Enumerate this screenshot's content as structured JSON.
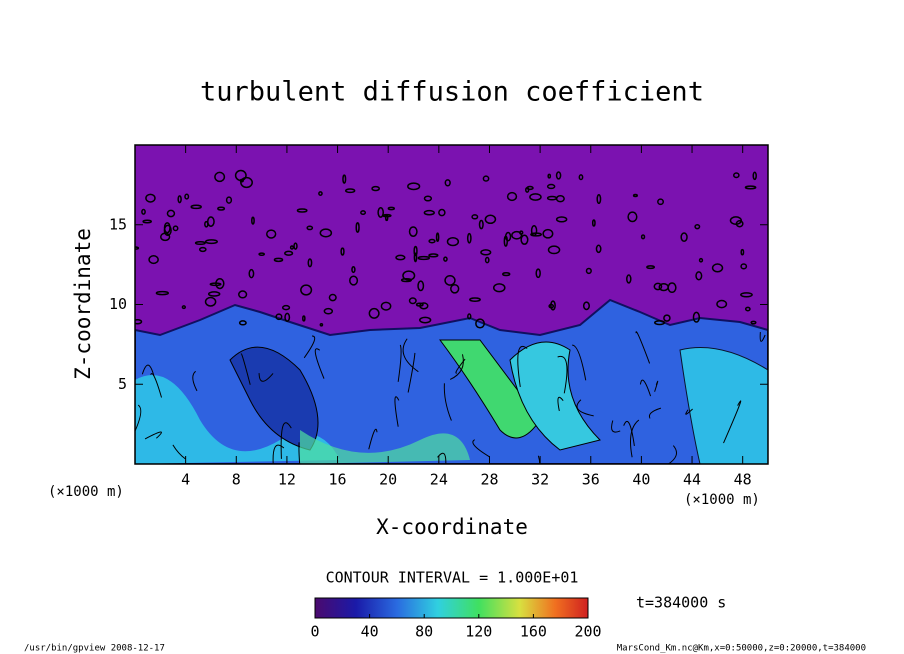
{
  "chart_data": {
    "type": "contour",
    "title": "turbulent diffusion coefficient",
    "x_label": "X-coordinate",
    "y_label": "Z-coordinate",
    "x_unit": "(×1000 m)",
    "y_unit": "(×1000 m)",
    "xlim": [
      0,
      50
    ],
    "ylim": [
      0,
      20
    ],
    "xticks": [
      4,
      8,
      12,
      16,
      20,
      24,
      28,
      32,
      36,
      40,
      44,
      48
    ],
    "yticks": [
      5,
      10,
      15
    ],
    "contour_interval": "CONTOUR INTERVAL = 1.000E+01",
    "time": "t=384000 s",
    "colorbar": {
      "lim": [
        0,
        200
      ],
      "ticks": [
        0,
        40,
        80,
        120,
        160,
        200
      ]
    },
    "footer_left": "/usr/bin/gpview   2008-12-17",
    "footer_right": "MarsCond_Km.nc@Km,x=0:50000,z=0:20000,t=384000"
  }
}
